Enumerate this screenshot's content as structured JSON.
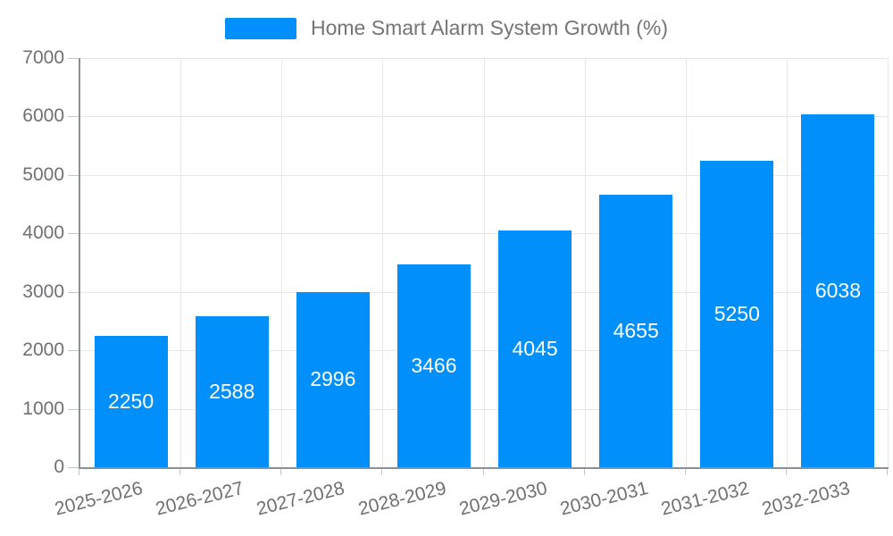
{
  "legend": {
    "label": "Home Smart Alarm System Growth (%)",
    "marker_color": "#008FFB"
  },
  "chart_data": {
    "type": "bar",
    "title": "Home Smart Alarm System Growth (%)",
    "categories": [
      "2025-2026",
      "2026-2027",
      "2027-2028",
      "2028-2029",
      "2029-2030",
      "2030-2031",
      "2031-2032",
      "2032-2033"
    ],
    "series": [
      {
        "name": "Home Smart Alarm System Growth (%)",
        "values": [
          2250,
          2588,
          2996,
          3466,
          4045,
          4655,
          5250,
          6038
        ]
      }
    ],
    "data_labels": [
      "2250",
      "2588",
      "2996",
      "3466",
      "4045",
      "4655",
      "5250",
      "6038"
    ],
    "xlabel": "",
    "ylabel": "",
    "ylim": [
      0,
      7000
    ],
    "ytick_interval": 1000,
    "yticks": [
      "0",
      "1000",
      "2000",
      "3000",
      "4000",
      "5000",
      "6000",
      "7000"
    ],
    "grid": true,
    "legend_position": "top",
    "x_label_rotation_deg": -14
  },
  "colors": {
    "bar": "#008FFB",
    "data_label": "#ffffff",
    "axis_line": "#8a8f94",
    "gridline": "#e7e7e7",
    "tick": "#c2c6ca",
    "axis_label": "#6e7073",
    "legend_text": "#757575",
    "background": "#ffffff"
  }
}
